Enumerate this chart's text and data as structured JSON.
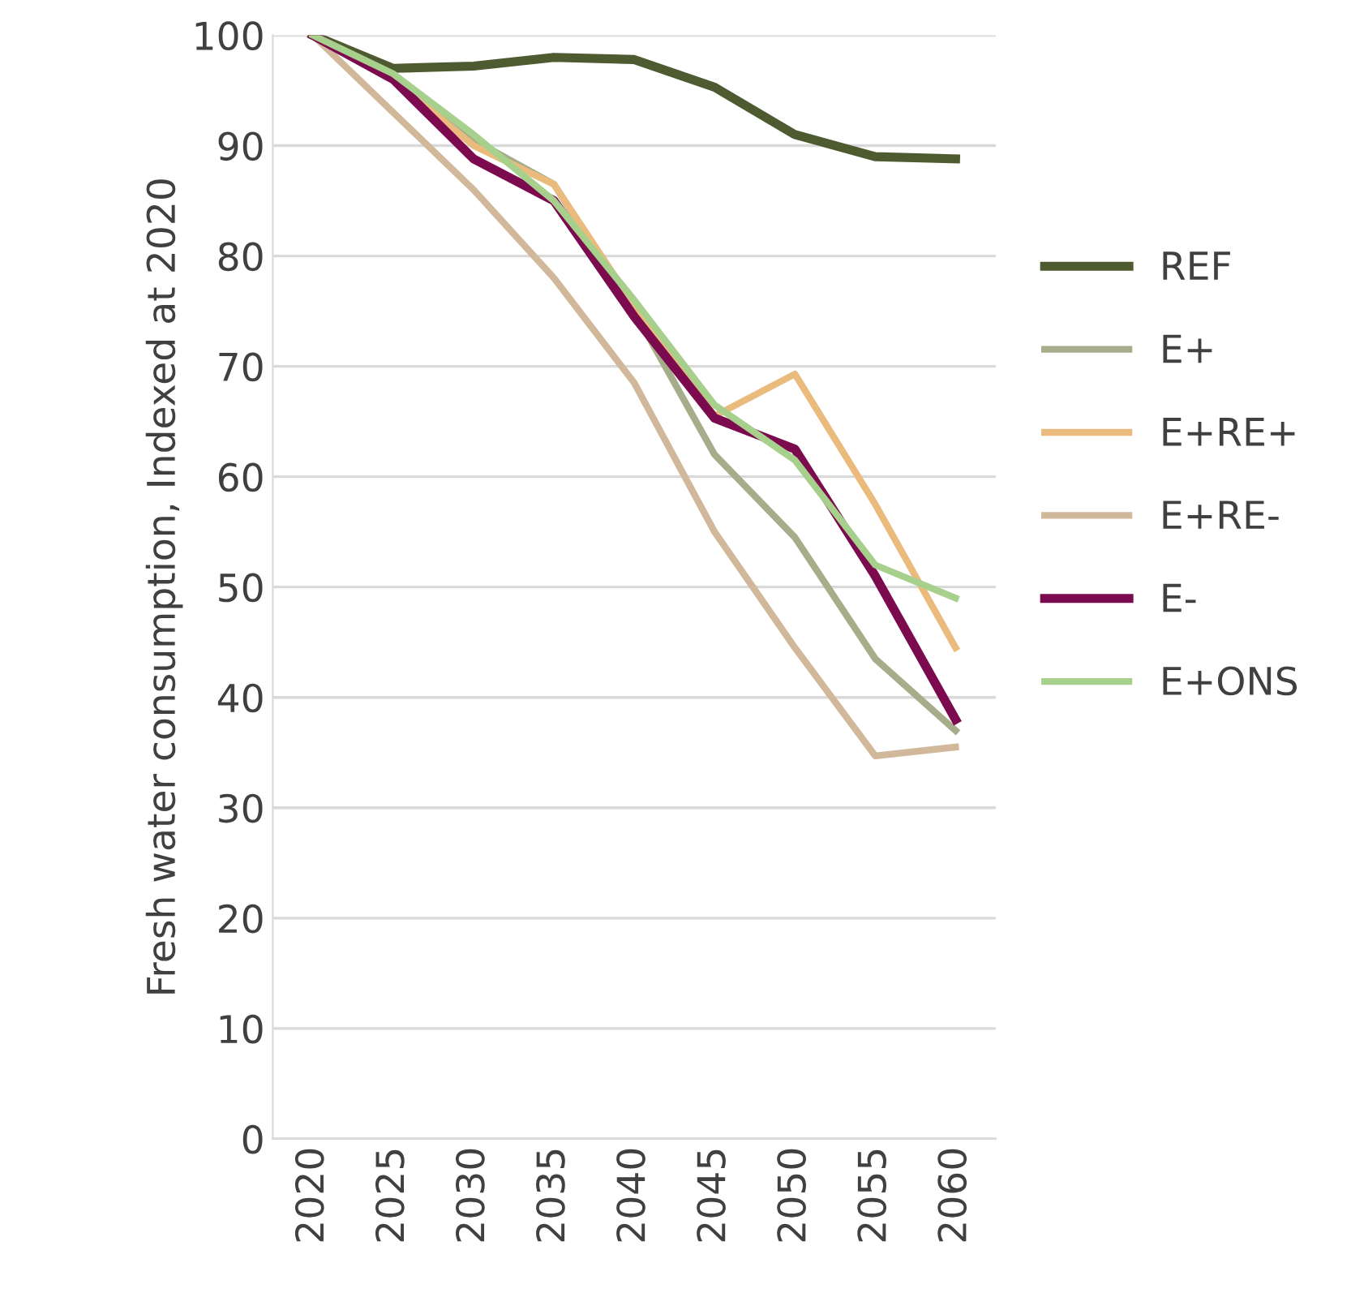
{
  "chart_data": {
    "type": "line",
    "ylabel": "Fresh water consumption, Indexed at 2020",
    "categories": [
      "2020",
      "2025",
      "2030",
      "2035",
      "2040",
      "2045",
      "2050",
      "2055",
      "2060"
    ],
    "series": [
      {
        "name": "REF",
        "color": "#4e5b31",
        "values": [
          100,
          97,
          97.2,
          98,
          97.8,
          95.3,
          91,
          89,
          88.8
        ]
      },
      {
        "name": "E+",
        "color": "#a6ad8a",
        "values": [
          100,
          96,
          90.5,
          86.5,
          75,
          62,
          54.5,
          43.5,
          37
        ]
      },
      {
        "name": "E+RE+",
        "color": "#ebbb7e",
        "values": [
          100,
          96,
          90,
          86.5,
          75.5,
          65.5,
          69.3,
          57.5,
          44.5
        ]
      },
      {
        "name": "E+RE-",
        "color": "#d2b89a",
        "values": [
          100,
          93,
          86,
          78,
          68.5,
          55,
          44.5,
          34.7,
          35.5
        ]
      },
      {
        "name": "E-",
        "color": "#7b0a4f",
        "values": [
          100,
          96,
          88.8,
          85,
          74.5,
          65.3,
          62.5,
          51,
          38
        ]
      },
      {
        "name": "E+ONS",
        "color": "#a8d08d",
        "values": [
          100,
          96.5,
          91,
          85,
          76,
          66.5,
          61.5,
          52,
          49
        ]
      }
    ],
    "ylim": [
      0,
      100
    ],
    "yticks": [
      0,
      10,
      20,
      30,
      40,
      50,
      60,
      70,
      80,
      90,
      100
    ],
    "grid": "y",
    "legend": "right",
    "marker": "none",
    "line_style": "solid"
  }
}
